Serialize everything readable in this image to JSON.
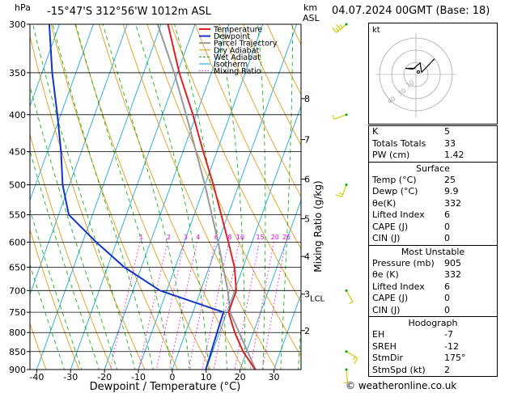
{
  "header": {
    "y_unit": "hPa",
    "location": "-15°47'S  312°56'W  1012m  ASL",
    "km_label": "km",
    "asl_label": "ASL",
    "date": "04.07.2024  00GMT  (Base: 18)"
  },
  "legend": [
    "Temperature",
    "Dewpoint",
    "Parcel Trajectory",
    "Dry Adiabat",
    "Wet Adiabat",
    "Isotherm",
    "Mixing Ratio"
  ],
  "colors": {
    "temperature": "#dd2222",
    "dewpoint": "#1133cc",
    "parcel": "#999999",
    "dry_adiabat": "#e09000",
    "wet_adiabat": "#00aa00",
    "isotherm": "#00a0dd",
    "mixing_ratio": "#ee00ee",
    "wind": "#cccc00"
  },
  "chart_data": {
    "type": "skew-t",
    "title": "-15°47'S  312°56'W  1012m  ASL",
    "xlabel": "Dewpoint / Temperature (°C)",
    "ylabel": "hPa",
    "secondary_ylabel": "Mixing Ratio (g/kg)",
    "pressure_levels": [
      300,
      350,
      400,
      450,
      500,
      550,
      600,
      650,
      700,
      750,
      800,
      850,
      900
    ],
    "x_ticks": [
      -40,
      -30,
      -20,
      -10,
      0,
      10,
      20,
      30
    ],
    "xlim": [
      -42,
      38
    ],
    "ylim": [
      900,
      300
    ],
    "km_ticks": [
      {
        "km": 2,
        "p": 795
      },
      {
        "km": 3,
        "p": 708
      },
      {
        "km": 4,
        "p": 628
      },
      {
        "km": 5,
        "p": 557
      },
      {
        "km": 6,
        "p": 491
      },
      {
        "km": 7,
        "p": 433
      },
      {
        "km": 8,
        "p": 380
      }
    ],
    "lcl_label": "LCL",
    "lcl_pressure": 715,
    "mixing_ratio_labels": [
      "1",
      "2",
      "3",
      "4",
      "6",
      "8",
      "10",
      "15",
      "20",
      "25"
    ],
    "mixing_ratio_label_pressure": 590,
    "temperature": [
      [
        905,
        25
      ],
      [
        850,
        19
      ],
      [
        800,
        14.5
      ],
      [
        750,
        10.5
      ],
      [
        700,
        10.5
      ],
      [
        650,
        7.5
      ],
      [
        600,
        3
      ],
      [
        550,
        -2
      ],
      [
        500,
        -7.5
      ],
      [
        450,
        -14
      ],
      [
        400,
        -21
      ],
      [
        350,
        -29.5
      ],
      [
        300,
        -38
      ]
    ],
    "dewpoint": [
      [
        905,
        9.9
      ],
      [
        850,
        9.6
      ],
      [
        800,
        9.3
      ],
      [
        750,
        9
      ],
      [
        700,
        -12
      ],
      [
        650,
        -25
      ],
      [
        600,
        -36
      ],
      [
        550,
        -47
      ],
      [
        500,
        -52
      ],
      [
        450,
        -56
      ],
      [
        400,
        -61
      ],
      [
        350,
        -67
      ],
      [
        300,
        -73
      ]
    ],
    "parcel": [
      [
        905,
        25
      ],
      [
        750,
        11
      ],
      [
        700,
        8
      ],
      [
        600,
        0
      ],
      [
        500,
        -10
      ],
      [
        400,
        -23
      ],
      [
        350,
        -31
      ],
      [
        300,
        -41
      ]
    ],
    "wind_barbs": [
      {
        "p": 300,
        "direction": 230,
        "speed": 20
      },
      {
        "p": 400,
        "direction": 250,
        "speed": 5
      },
      {
        "p": 500,
        "direction": 200,
        "speed": 10
      },
      {
        "p": 700,
        "direction": 150,
        "speed": 5
      },
      {
        "p": 850,
        "direction": 120,
        "speed": 10
      },
      {
        "p": 900,
        "direction": 175,
        "speed": 5
      }
    ]
  },
  "hodograph": {
    "label": "kt",
    "ring_labels": [
      "40",
      "30",
      "10"
    ]
  },
  "indices": [
    {
      "label": "K",
      "value": "5"
    },
    {
      "label": "Totals Totals",
      "value": "33"
    },
    {
      "label": "PW (cm)",
      "value": "1.42"
    }
  ],
  "surface": {
    "title": "Surface",
    "rows": [
      {
        "label": "Temp (°C)",
        "value": "25"
      },
      {
        "label": "Dewp (°C)",
        "value": "9.9"
      },
      {
        "label": "θe(K)",
        "value": "332"
      },
      {
        "label": "Lifted Index",
        "value": "6"
      },
      {
        "label": "CAPE (J)",
        "value": "0"
      },
      {
        "label": "CIN (J)",
        "value": "0"
      }
    ]
  },
  "most_unstable": {
    "title": "Most Unstable",
    "rows": [
      {
        "label": "Pressure (mb)",
        "value": "905"
      },
      {
        "label": "θe (K)",
        "value": "332"
      },
      {
        "label": "Lifted Index",
        "value": "6"
      },
      {
        "label": "CAPE (J)",
        "value": "0"
      },
      {
        "label": "CIN (J)",
        "value": "0"
      }
    ]
  },
  "hodograph_table": {
    "title": "Hodograph",
    "rows": [
      {
        "label": "EH",
        "value": "-7"
      },
      {
        "label": "SREH",
        "value": "-12"
      },
      {
        "label": "StmDir",
        "value": "175°"
      },
      {
        "label": "StmSpd (kt)",
        "value": "2"
      }
    ]
  },
  "credit": "© weatheronline.co.uk"
}
